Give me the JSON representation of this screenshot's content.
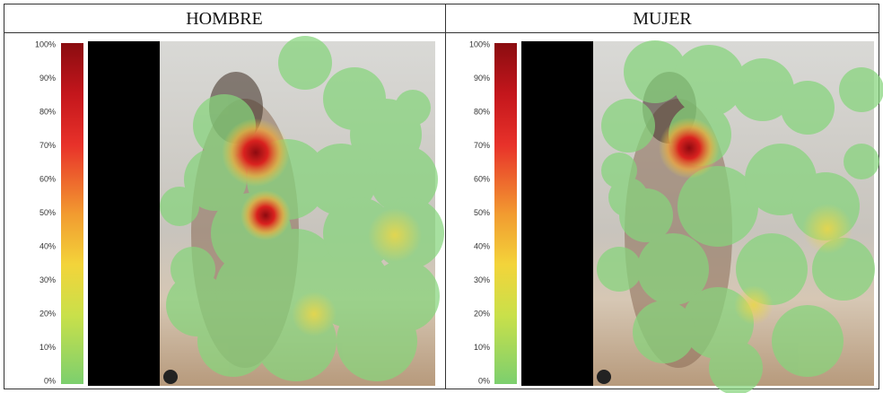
{
  "table": {
    "headers": [
      "HOMBRE",
      "MUJER"
    ],
    "panels": [
      {
        "scale_labels": [
          "100%",
          "90%",
          "80%",
          "70%",
          "60%",
          "50%",
          "40%",
          "30%",
          "20%",
          "10%",
          "0%"
        ]
      },
      {
        "scale_labels": [
          "100%",
          "90%",
          "80%",
          "70%",
          "60%",
          "50%",
          "40%",
          "30%",
          "20%",
          "10%",
          "0%"
        ]
      }
    ]
  }
}
